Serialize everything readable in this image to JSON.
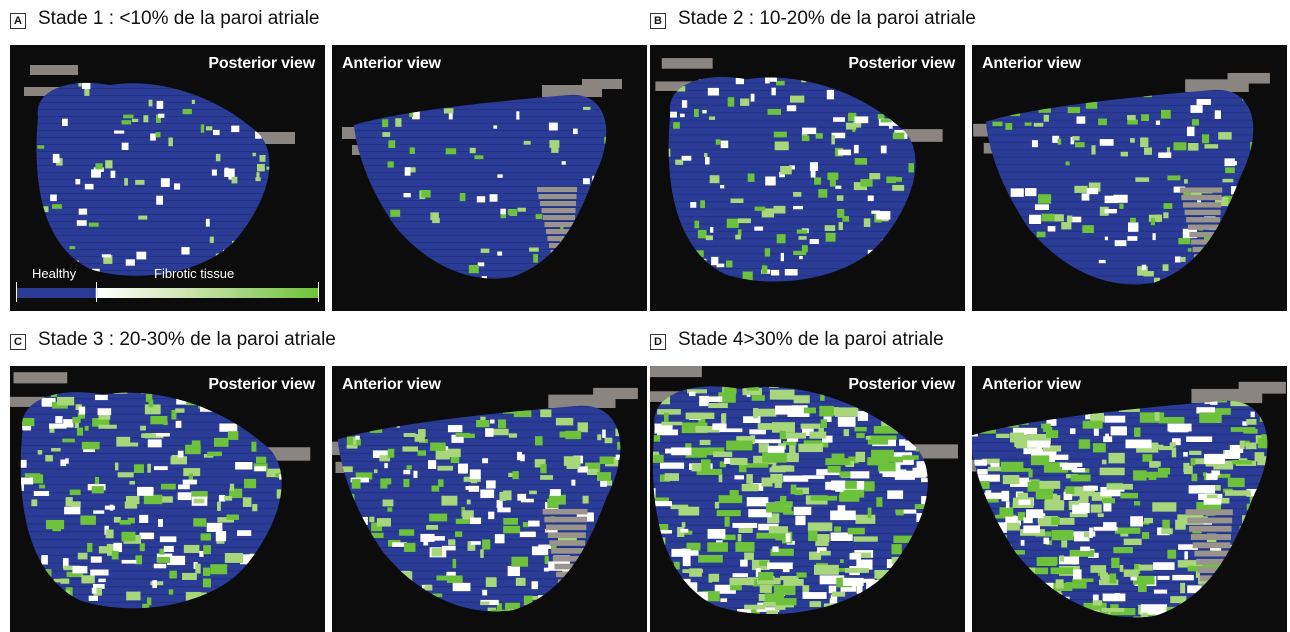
{
  "colors": {
    "healthy": "#2a3c96",
    "fibrotic": "#6ec13a",
    "vein": "#8a8580",
    "background": "#0c0c0c"
  },
  "stages": [
    {
      "letter": "A",
      "title": "Stade 1 : <10% de la paroi atriale",
      "fibrosis_level": 0.05,
      "posterior_label": "Posterior view",
      "anterior_label": "Anterior view"
    },
    {
      "letter": "B",
      "title": "Stade 2 : 10-20% de la paroi atriale",
      "fibrosis_level": 0.15,
      "posterior_label": "Posterior view",
      "anterior_label": "Anterior view"
    },
    {
      "letter": "C",
      "title": "Stade 3 : 20-30% de la paroi atriale",
      "fibrosis_level": 0.25,
      "posterior_label": "Posterior view",
      "anterior_label": "Anterior view"
    },
    {
      "letter": "D",
      "title": "Stade 4>30% de la paroi atriale",
      "fibrosis_level": 0.45,
      "posterior_label": "Posterior view",
      "anterior_label": "Anterior view"
    }
  ],
  "legend": {
    "healthy_label": "Healthy",
    "fibrotic_label": "Fibrotic tissue"
  }
}
